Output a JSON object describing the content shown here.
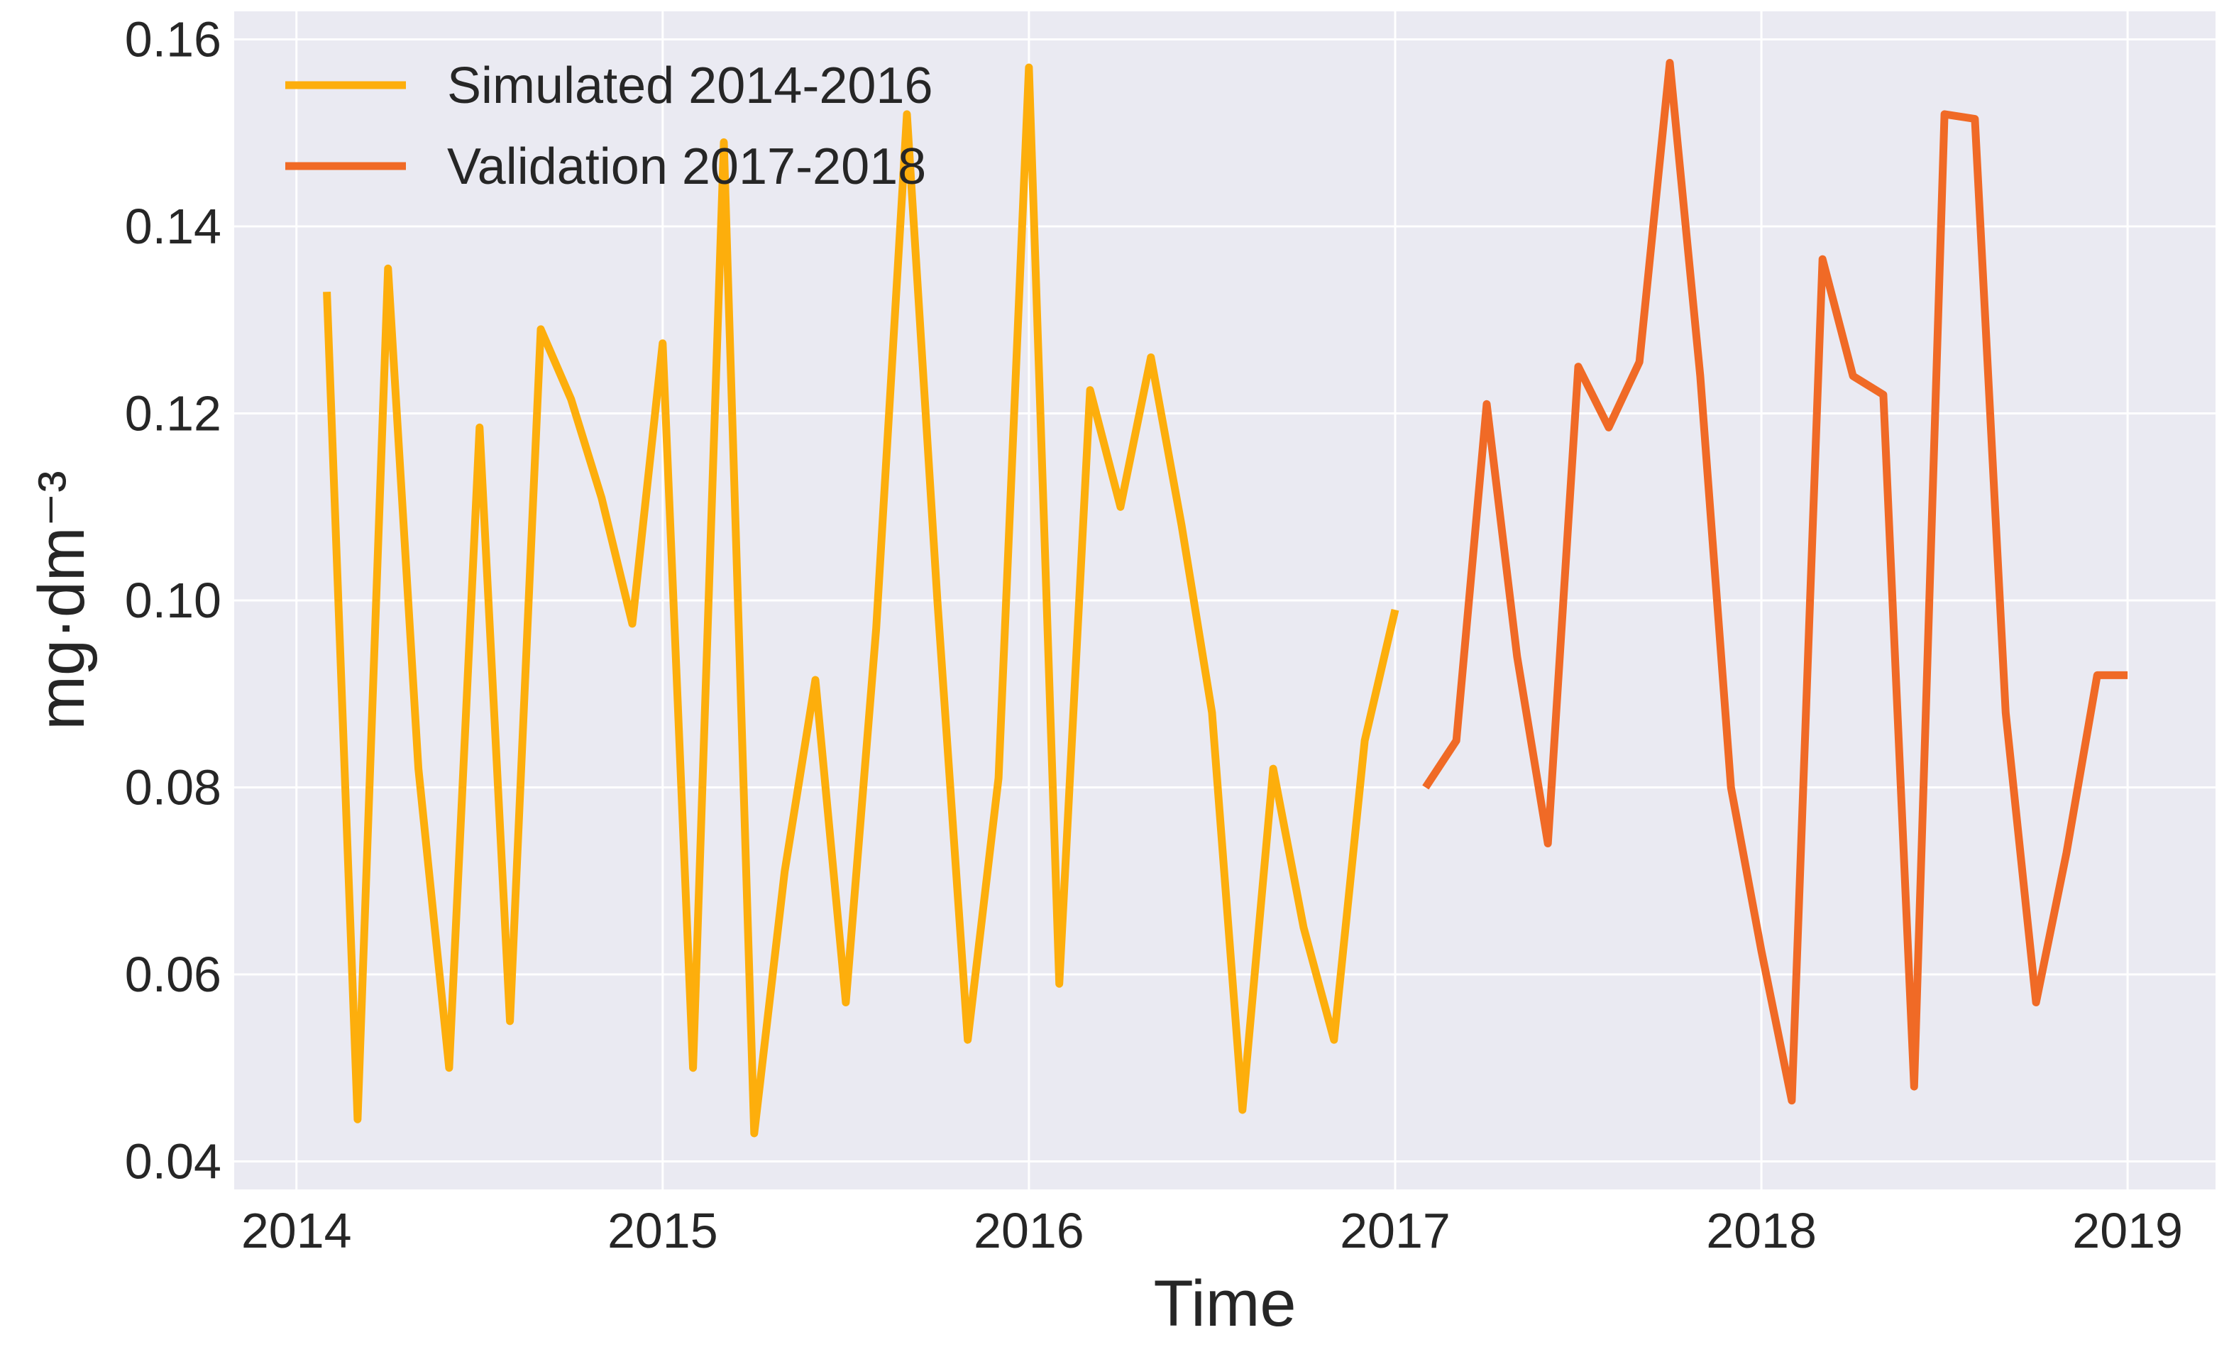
{
  "chart_data": {
    "type": "line",
    "xlabel": "Time",
    "ylabel": "mg·dm⁻³",
    "x_ticks": [
      "2014",
      "2015",
      "2016",
      "2017",
      "2018",
      "2019"
    ],
    "y_ticks": [
      "0.04",
      "0.06",
      "0.08",
      "0.10",
      "0.12",
      "0.14",
      "0.16"
    ],
    "xlim": [
      2013.83,
      2019.24
    ],
    "ylim": [
      0.037,
      0.163
    ],
    "grid": true,
    "legend_position": "top-left",
    "background": "#eaeaf2",
    "series": [
      {
        "name": "Simulated 2014-2016",
        "color": "#fdae0c",
        "points": [
          [
            2014.083,
            0.133
          ],
          [
            2014.167,
            0.0445
          ],
          [
            2014.25,
            0.1355
          ],
          [
            2014.333,
            0.082
          ],
          [
            2014.417,
            0.05
          ],
          [
            2014.5,
            0.1185
          ],
          [
            2014.583,
            0.055
          ],
          [
            2014.667,
            0.129
          ],
          [
            2014.75,
            0.1215
          ],
          [
            2014.833,
            0.111
          ],
          [
            2014.917,
            0.0975
          ],
          [
            2015.0,
            0.1275
          ],
          [
            2015.083,
            0.05
          ],
          [
            2015.167,
            0.149
          ],
          [
            2015.25,
            0.043
          ],
          [
            2015.333,
            0.071
          ],
          [
            2015.417,
            0.0915
          ],
          [
            2015.5,
            0.057
          ],
          [
            2015.583,
            0.097
          ],
          [
            2015.667,
            0.152
          ],
          [
            2015.75,
            0.1
          ],
          [
            2015.833,
            0.053
          ],
          [
            2015.917,
            0.081
          ],
          [
            2016.0,
            0.157
          ],
          [
            2016.083,
            0.059
          ],
          [
            2016.167,
            0.1225
          ],
          [
            2016.25,
            0.11
          ],
          [
            2016.333,
            0.126
          ],
          [
            2016.417,
            0.108
          ],
          [
            2016.5,
            0.088
          ],
          [
            2016.583,
            0.0455
          ],
          [
            2016.667,
            0.082
          ],
          [
            2016.75,
            0.065
          ],
          [
            2016.833,
            0.053
          ],
          [
            2016.917,
            0.085
          ],
          [
            2017.0,
            0.099
          ]
        ]
      },
      {
        "name": "Validation 2017-2018",
        "color": "#f06a26",
        "points": [
          [
            2017.083,
            0.08
          ],
          [
            2017.167,
            0.085
          ],
          [
            2017.25,
            0.121
          ],
          [
            2017.333,
            0.094
          ],
          [
            2017.417,
            0.074
          ],
          [
            2017.5,
            0.125
          ],
          [
            2017.583,
            0.1185
          ],
          [
            2017.667,
            0.1255
          ],
          [
            2017.75,
            0.1575
          ],
          [
            2017.833,
            0.124
          ],
          [
            2017.917,
            0.08
          ],
          [
            2018.0,
            0.0625
          ],
          [
            2018.083,
            0.0465
          ],
          [
            2018.167,
            0.1365
          ],
          [
            2018.25,
            0.124
          ],
          [
            2018.333,
            0.122
          ],
          [
            2018.417,
            0.048
          ],
          [
            2018.5,
            0.152
          ],
          [
            2018.583,
            0.1515
          ],
          [
            2018.667,
            0.088
          ],
          [
            2018.75,
            0.057
          ],
          [
            2018.833,
            0.073
          ],
          [
            2018.917,
            0.092
          ],
          [
            2019.0,
            0.092
          ]
        ]
      }
    ]
  }
}
